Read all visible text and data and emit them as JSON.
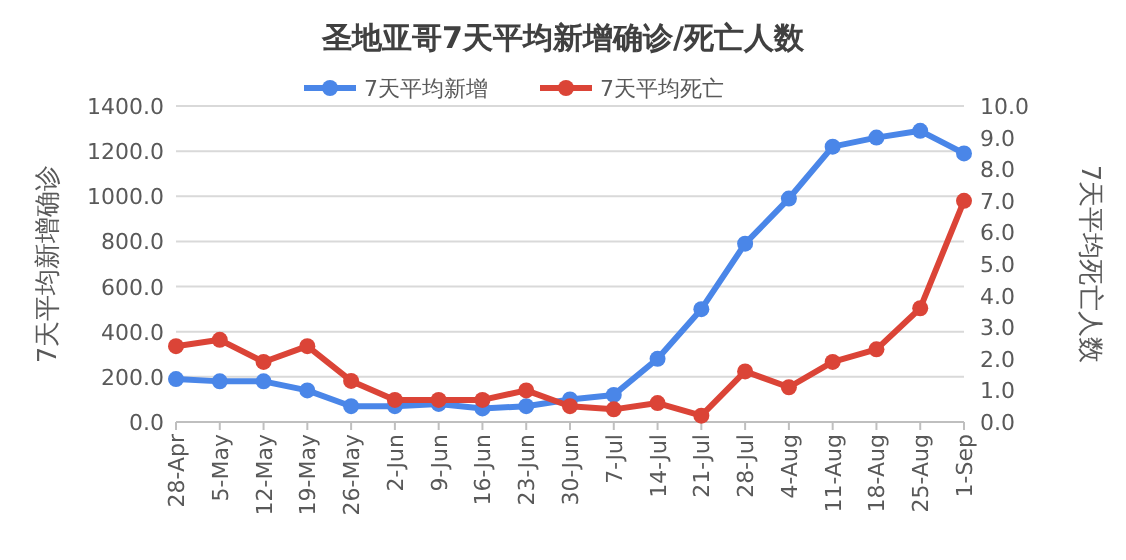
{
  "chart_data": {
    "type": "line",
    "title": "圣地亚哥7天平均新增确诊/死亡人数",
    "ylabel": "7天平均新增确诊",
    "y2label": "7天平均死亡人数",
    "categories": [
      "28-Apr",
      "5-May",
      "12-May",
      "19-May",
      "26-May",
      "2-Jun",
      "9-Jun",
      "16-Jun",
      "23-Jun",
      "30-Jun",
      "7-Jul",
      "14-Jul",
      "21-Jul",
      "28-Jul",
      "4-Aug",
      "11-Aug",
      "18-Aug",
      "25-Aug",
      "1-Sep"
    ],
    "series": [
      {
        "name": "7天平均新增",
        "color": "#4a86e8",
        "values": [
          190,
          180,
          180,
          140,
          70,
          70,
          80,
          60,
          70,
          100,
          120,
          280,
          500,
          790,
          990,
          1220,
          1260,
          1290,
          1190
        ]
      },
      {
        "name": "7天平均死亡",
        "color": "#db4437",
        "axis": "y2",
        "values": [
          2.4,
          2.6,
          1.9,
          2.4,
          1.3,
          0.7,
          0.7,
          0.7,
          1.0,
          0.5,
          0.4,
          0.6,
          0.2,
          1.6,
          1.1,
          1.9,
          2.3,
          3.6,
          7.0
        ]
      }
    ],
    "ylim": [
      0,
      1400
    ],
    "yticks": [
      {
        "value": 0,
        "label": "0.0"
      },
      {
        "value": 200,
        "label": "200.0"
      },
      {
        "value": 400,
        "label": "400.0"
      },
      {
        "value": 600,
        "label": "600.0"
      },
      {
        "value": 800,
        "label": "800.0"
      },
      {
        "value": 1000,
        "label": "1000.0"
      },
      {
        "value": 1200,
        "label": "1200.0"
      },
      {
        "value": 1400,
        "label": "1400.0"
      }
    ],
    "y2lim": [
      0,
      10
    ],
    "y2ticks": [
      {
        "value": 0,
        "label": "0.0"
      },
      {
        "value": 1,
        "label": "1.0"
      },
      {
        "value": 2,
        "label": "2.0"
      },
      {
        "value": 3,
        "label": "3.0"
      },
      {
        "value": 4,
        "label": "4.0"
      },
      {
        "value": 5,
        "label": "5.0"
      },
      {
        "value": 6,
        "label": "6.0"
      },
      {
        "value": 7,
        "label": "7.0"
      },
      {
        "value": 8,
        "label": "8.0"
      },
      {
        "value": 9,
        "label": "9.0"
      },
      {
        "value": 10,
        "label": "10.0"
      }
    ],
    "grid": "y",
    "legend": "top",
    "marker": "circle",
    "line_style": "solid"
  }
}
